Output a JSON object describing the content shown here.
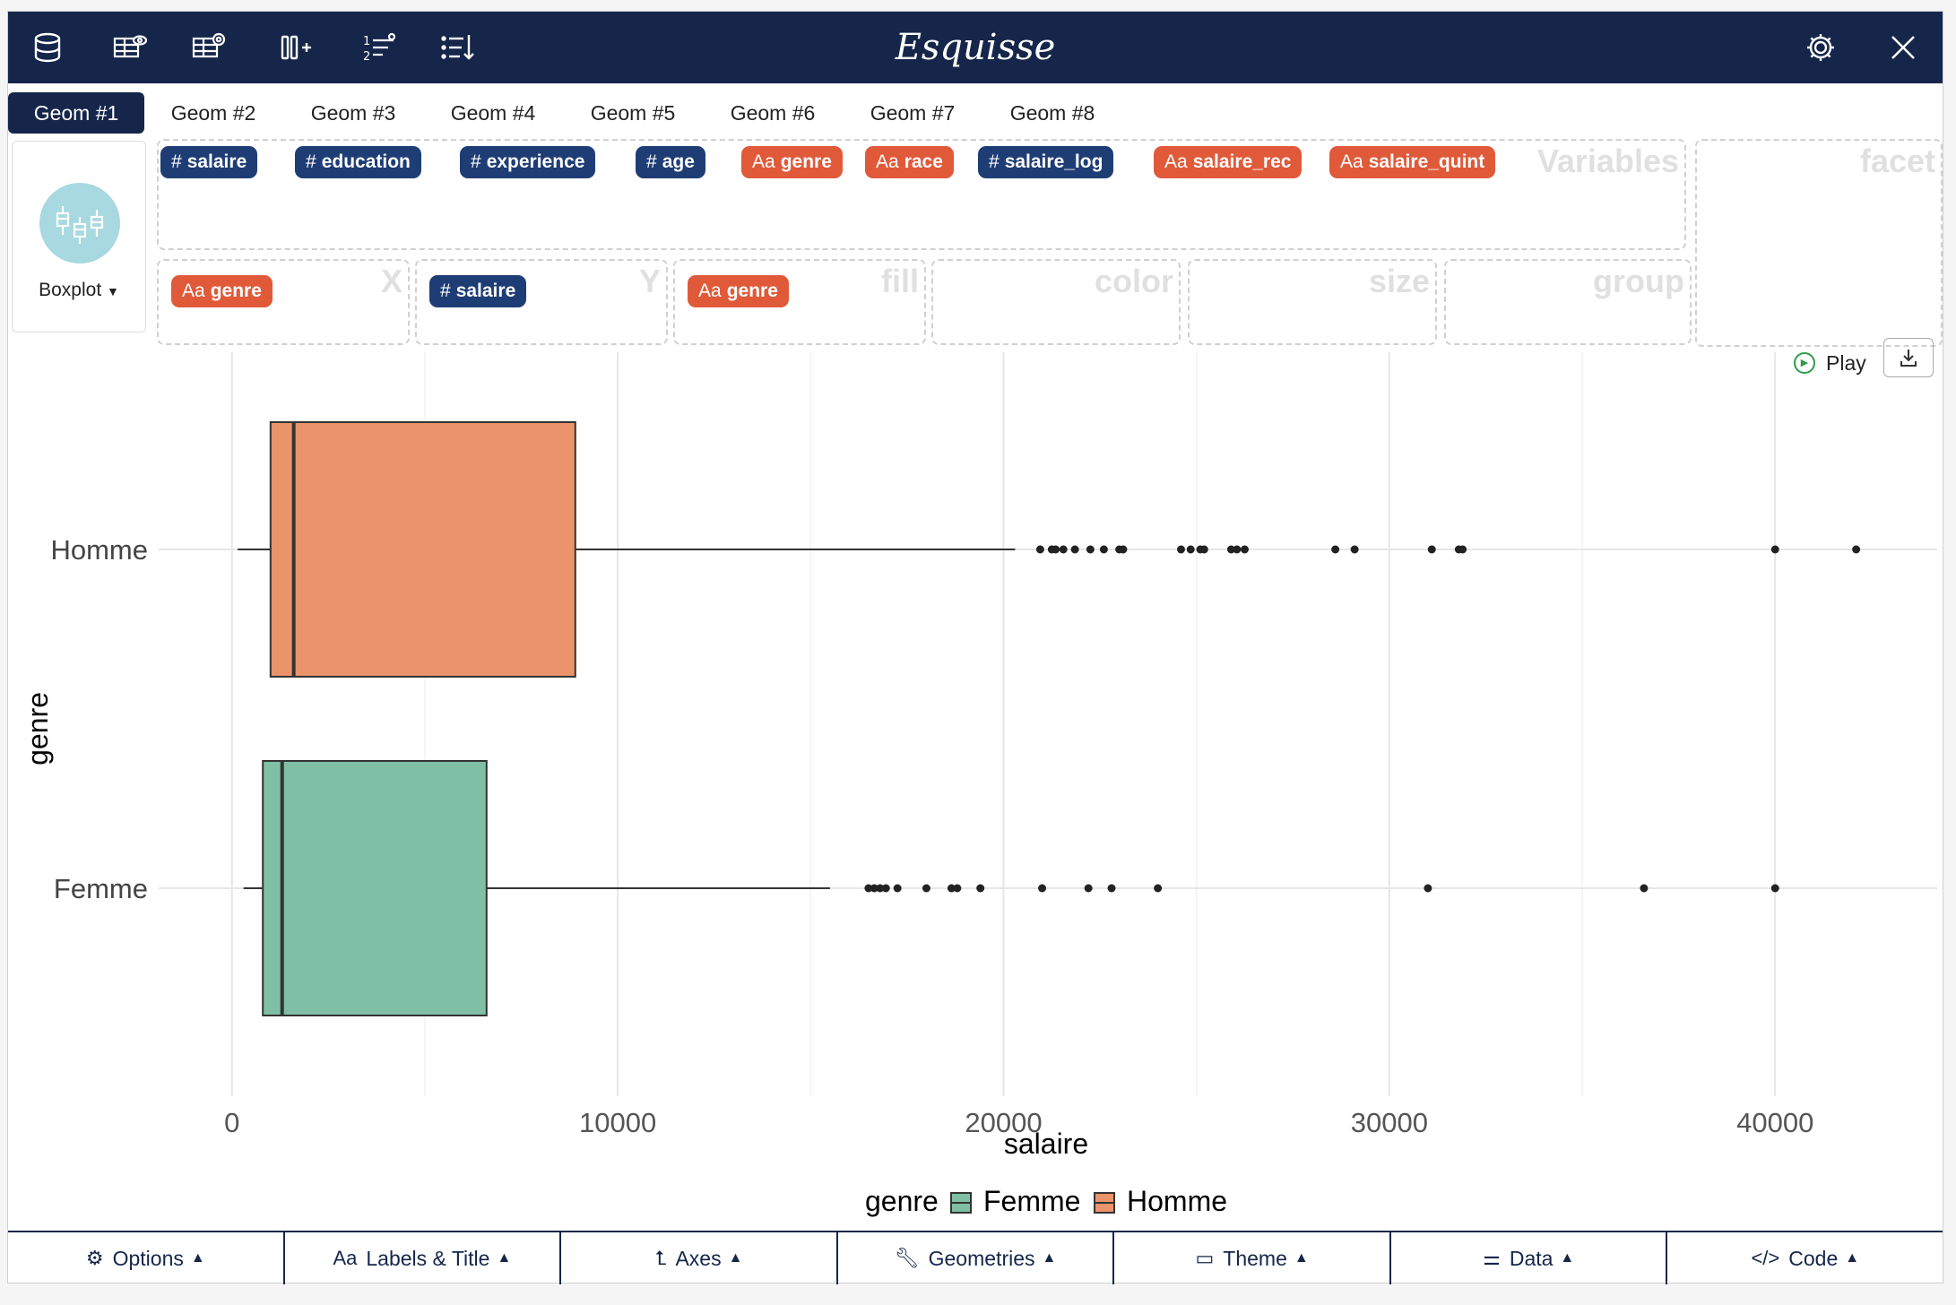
{
  "app": {
    "title": "Esquisse"
  },
  "toolbar": {
    "icons": [
      "database-icon",
      "table-view-icon",
      "table-settings-icon",
      "add-column-icon",
      "sort-order-icon",
      "filter-list-icon",
      "settings-gear-icon",
      "close-icon"
    ]
  },
  "geom_tabs": [
    "Geom #1",
    "Geom #2",
    "Geom #3",
    "Geom #4",
    "Geom #5",
    "Geom #6",
    "Geom #7",
    "Geom #8"
  ],
  "geom_selector": {
    "label": "Boxplot"
  },
  "variables": [
    {
      "prefix": "#",
      "name": "salaire",
      "kind": "numeric"
    },
    {
      "prefix": "#",
      "name": "education",
      "kind": "numeric"
    },
    {
      "prefix": "#",
      "name": "experience",
      "kind": "numeric"
    },
    {
      "prefix": "#",
      "name": "age",
      "kind": "numeric"
    },
    {
      "prefix": "Aa",
      "name": "genre",
      "kind": "categorical"
    },
    {
      "prefix": "Aa",
      "name": "race",
      "kind": "categorical"
    },
    {
      "prefix": "#",
      "name": "salaire_log",
      "kind": "numeric"
    },
    {
      "prefix": "Aa",
      "name": "salaire_rec",
      "kind": "categorical"
    },
    {
      "prefix": "Aa",
      "name": "salaire_quint",
      "kind": "categorical"
    }
  ],
  "dropzones": {
    "variables": "Variables",
    "facet": "facet",
    "x": {
      "label": "X",
      "prefix": "Aa",
      "value": "genre"
    },
    "y": {
      "label": "Y",
      "prefix": "#",
      "value": "salaire"
    },
    "fill": {
      "label": "fill",
      "prefix": "Aa",
      "value": "genre"
    },
    "color": "color",
    "size": "size",
    "group": "group"
  },
  "actions": {
    "play_label": "Play"
  },
  "chart_data": {
    "type": "boxplot",
    "orientation": "horizontal",
    "xlabel": "salaire",
    "ylabel": "genre",
    "xlim": [
      -1900,
      44200
    ],
    "xticks": [
      0,
      10000,
      20000,
      30000,
      40000
    ],
    "xtick_labels": [
      "0",
      "10000",
      "20000",
      "30000",
      "40000"
    ],
    "categories": [
      "Homme",
      "Femme"
    ],
    "legend": {
      "title": "genre",
      "position": "bottom",
      "entries": [
        "Femme",
        "Homme"
      ]
    },
    "series": [
      {
        "name": "Homme",
        "color": "#eb936b",
        "whisker_low": 150,
        "q1": 1000,
        "median": 1600,
        "q3": 8900,
        "whisker_high": 20300,
        "outliers": [
          20950,
          21250,
          21350,
          21550,
          21850,
          22250,
          22600,
          23000,
          23100,
          24600,
          24850,
          25100,
          25200,
          25900,
          26050,
          26250,
          28600,
          29100,
          31100,
          31800,
          31900,
          40000,
          42100
        ]
      },
      {
        "name": "Femme",
        "color": "#7fbfa6",
        "whisker_low": 300,
        "q1": 800,
        "median": 1300,
        "q3": 6600,
        "whisker_high": 15500,
        "outliers": [
          16500,
          16650,
          16800,
          16950,
          17250,
          18000,
          18650,
          18800,
          19400,
          21000,
          22200,
          22800,
          24000,
          31000,
          36600,
          40000
        ]
      }
    ]
  },
  "bottom_bar": [
    {
      "icon": "gear-icon",
      "label": "Options"
    },
    {
      "icon": "labels-icon",
      "label": "Labels & Title"
    },
    {
      "icon": "axes-icon",
      "label": "Axes"
    },
    {
      "icon": "wrench-icon",
      "label": "Geometries"
    },
    {
      "icon": "paint-roller-icon",
      "label": "Theme"
    },
    {
      "icon": "sliders-icon",
      "label": "Data"
    },
    {
      "icon": "code-icon",
      "label": "Code"
    }
  ]
}
